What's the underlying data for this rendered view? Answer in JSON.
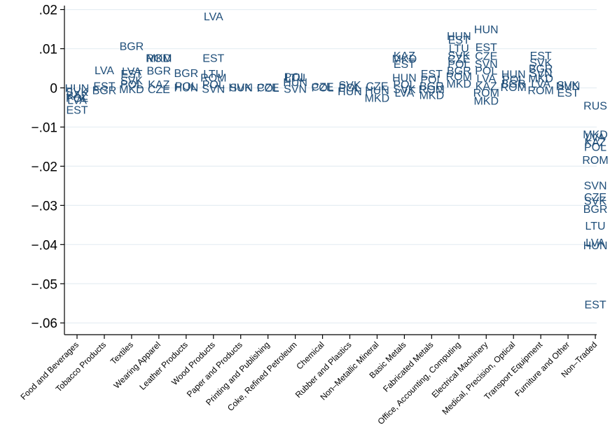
{
  "chart_data": {
    "type": "scatter",
    "marker": "country-code text labels",
    "color": "#1f4e79",
    "grid": true,
    "ylim": [
      -0.063,
      0.021
    ],
    "yticks": [
      ".02",
      ".01",
      "0",
      "−.01",
      "−.02",
      "−.03",
      "−.04",
      "−.05",
      "−.06"
    ],
    "ytick_values": [
      0.02,
      0.01,
      0,
      -0.01,
      -0.02,
      -0.03,
      -0.04,
      -0.05,
      -0.06
    ],
    "categories": [
      "Food and Beverages",
      "Tobacco Products",
      "Textiles",
      "Wearing Apparel",
      "Leather Products",
      "Wood Products",
      "Paper and Products",
      "Printing and Publishing",
      "Coke, Refined Petroleum",
      "Chemical",
      "Rubber and Plastics",
      "Non–Metallic Mineral",
      "Basic Metals",
      "Fabricated Metals",
      "Office, Accounting, Computing",
      "Electrical Machinery",
      "Medical, Precision, Optical",
      "Transport Equipment",
      "Furniture and Other",
      "Non–Traded"
    ],
    "points": [
      {
        "x": 0,
        "y": 0,
        "label": "HUN"
      },
      {
        "x": 0,
        "y": -0.001,
        "label": "SVK"
      },
      {
        "x": 0,
        "y": -0.002,
        "label": "KAZ"
      },
      {
        "x": 0,
        "y": -0.0025,
        "label": "POL"
      },
      {
        "x": 0,
        "y": -0.003,
        "label": "LVA"
      },
      {
        "x": 0,
        "y": -0.0055,
        "label": "EST"
      },
      {
        "x": 1,
        "y": 0.0046,
        "label": "LVA"
      },
      {
        "x": 1,
        "y": 0.0005,
        "label": "EST"
      },
      {
        "x": 1,
        "y": -0.0005,
        "label": "BGR"
      },
      {
        "x": 2,
        "y": 0.0107,
        "label": "BGR"
      },
      {
        "x": 2,
        "y": 0.0043,
        "label": "LVA"
      },
      {
        "x": 2,
        "y": 0.0037,
        "label": "EST"
      },
      {
        "x": 2,
        "y": 0.002,
        "label": "SVK"
      },
      {
        "x": 2,
        "y": 0.001,
        "label": "POL"
      },
      {
        "x": 2,
        "y": -0.0003,
        "label": "MKD"
      },
      {
        "x": 3,
        "y": 0.0077,
        "label": "ROM"
      },
      {
        "x": 3,
        "y": 0.0077,
        "label": "MKD"
      },
      {
        "x": 3,
        "y": 0.0045,
        "label": "BGR"
      },
      {
        "x": 3,
        "y": 0.001,
        "label": "KAZ"
      },
      {
        "x": 3,
        "y": -0.0003,
        "label": "CZE"
      },
      {
        "x": 4,
        "y": 0.0038,
        "label": "BGR"
      },
      {
        "x": 4,
        "y": 0.0005,
        "label": "POL"
      },
      {
        "x": 4,
        "y": 0.0002,
        "label": "HUN"
      },
      {
        "x": 5,
        "y": 0.0183,
        "label": "LVA"
      },
      {
        "x": 5,
        "y": 0.0077,
        "label": "EST"
      },
      {
        "x": 5,
        "y": 0.0037,
        "label": "LTU"
      },
      {
        "x": 5,
        "y": 0.0027,
        "label": "ROM"
      },
      {
        "x": 5,
        "y": 0.001,
        "label": "POL"
      },
      {
        "x": 5,
        "y": -0.0002,
        "label": "SVN"
      },
      {
        "x": 6,
        "y": 0.0002,
        "label": "SVK"
      },
      {
        "x": 6,
        "y": 0.0002,
        "label": "HUN"
      },
      {
        "x": 7,
        "y": 0.0001,
        "label": "POL"
      },
      {
        "x": 7,
        "y": 0.0002,
        "label": "CZE"
      },
      {
        "x": 8,
        "y": 0.0029,
        "label": "POL"
      },
      {
        "x": 8,
        "y": 0.0027,
        "label": "LTU"
      },
      {
        "x": 8,
        "y": 0.0015,
        "label": "HUN"
      },
      {
        "x": 8,
        "y": -0.0002,
        "label": "SVN"
      },
      {
        "x": 9,
        "y": 0.0004,
        "label": "CZE"
      },
      {
        "x": 9,
        "y": 0.0002,
        "label": "POL"
      },
      {
        "x": 10,
        "y": 0.0008,
        "label": "SVK"
      },
      {
        "x": 10,
        "y": 0.0002,
        "label": "POL"
      },
      {
        "x": 10,
        "y": -0.0008,
        "label": "HUN"
      },
      {
        "x": 11,
        "y": 0.0005,
        "label": "CZE"
      },
      {
        "x": 11,
        "y": -0.0005,
        "label": "HUN"
      },
      {
        "x": 11,
        "y": -0.0025,
        "label": "MKD"
      },
      {
        "x": 12,
        "y": 0.0083,
        "label": "KAZ"
      },
      {
        "x": 12,
        "y": 0.0075,
        "label": "MKD"
      },
      {
        "x": 12,
        "y": 0.0062,
        "label": "EST"
      },
      {
        "x": 12,
        "y": 0.0027,
        "label": "HUN"
      },
      {
        "x": 12,
        "y": 0.001,
        "label": "POL"
      },
      {
        "x": 12,
        "y": -0.0003,
        "label": "SVK"
      },
      {
        "x": 12,
        "y": -0.0012,
        "label": "LVA"
      },
      {
        "x": 13,
        "y": 0.0037,
        "label": "EST"
      },
      {
        "x": 13,
        "y": 0.0022,
        "label": "POL"
      },
      {
        "x": 13,
        "y": 0.0005,
        "label": "BGR"
      },
      {
        "x": 13,
        "y": -0.0003,
        "label": "ROM"
      },
      {
        "x": 13,
        "y": -0.0018,
        "label": "MKD"
      },
      {
        "x": 14,
        "y": 0.0133,
        "label": "HUN"
      },
      {
        "x": 14,
        "y": 0.0123,
        "label": "EST"
      },
      {
        "x": 14,
        "y": 0.0102,
        "label": "LTU"
      },
      {
        "x": 14,
        "y": 0.0083,
        "label": "SVK"
      },
      {
        "x": 14,
        "y": 0.0075,
        "label": "CZE"
      },
      {
        "x": 14,
        "y": 0.0062,
        "label": "POL"
      },
      {
        "x": 14,
        "y": 0.0045,
        "label": "BGR"
      },
      {
        "x": 14,
        "y": 0.003,
        "label": "ROM"
      },
      {
        "x": 14,
        "y": 0.0012,
        "label": "MKD"
      },
      {
        "x": 15,
        "y": 0.015,
        "label": "HUN"
      },
      {
        "x": 15,
        "y": 0.0105,
        "label": "EST"
      },
      {
        "x": 15,
        "y": 0.0082,
        "label": "CZE"
      },
      {
        "x": 15,
        "y": 0.0062,
        "label": "SVN"
      },
      {
        "x": 15,
        "y": 0.0045,
        "label": "POL"
      },
      {
        "x": 15,
        "y": 0.0025,
        "label": "LVA"
      },
      {
        "x": 15,
        "y": 0.0005,
        "label": "KAZ"
      },
      {
        "x": 15,
        "y": -0.0012,
        "label": "ROM"
      },
      {
        "x": 15,
        "y": -0.0032,
        "label": "MKD"
      },
      {
        "x": 16,
        "y": 0.0036,
        "label": "HUN"
      },
      {
        "x": 16,
        "y": 0.0022,
        "label": "POL"
      },
      {
        "x": 16,
        "y": 0.0012,
        "label": "BGR"
      },
      {
        "x": 16,
        "y": 0.0003,
        "label": "ROM"
      },
      {
        "x": 17,
        "y": 0.0083,
        "label": "EST"
      },
      {
        "x": 17,
        "y": 0.0065,
        "label": "SVK"
      },
      {
        "x": 17,
        "y": 0.005,
        "label": "BGR"
      },
      {
        "x": 17,
        "y": 0.0038,
        "label": "SVN"
      },
      {
        "x": 17,
        "y": 0.0025,
        "label": "MKD"
      },
      {
        "x": 17,
        "y": 0.0012,
        "label": "LVA"
      },
      {
        "x": 17,
        "y": -0.0005,
        "label": "ROM"
      },
      {
        "x": 18,
        "y": 0.0008,
        "label": "SVK"
      },
      {
        "x": 18,
        "y": 0.0005,
        "label": "HUN"
      },
      {
        "x": 18,
        "y": -0.0012,
        "label": "EST"
      },
      {
        "x": 19,
        "y": -0.0045,
        "label": "RUS"
      },
      {
        "x": 19,
        "y": -0.0118,
        "label": "MKD"
      },
      {
        "x": 19,
        "y": -0.0125,
        "label": "LVA"
      },
      {
        "x": 19,
        "y": -0.0138,
        "label": "KAZ"
      },
      {
        "x": 19,
        "y": -0.015,
        "label": "POL"
      },
      {
        "x": 19,
        "y": -0.0183,
        "label": "ROM"
      },
      {
        "x": 19,
        "y": -0.0248,
        "label": "SVN"
      },
      {
        "x": 19,
        "y": -0.0278,
        "label": "CZE"
      },
      {
        "x": 19,
        "y": -0.0288,
        "label": "SVK"
      },
      {
        "x": 19,
        "y": -0.0308,
        "label": "BGR"
      },
      {
        "x": 19,
        "y": -0.0351,
        "label": "LTU"
      },
      {
        "x": 19,
        "y": -0.0394,
        "label": "LVA"
      },
      {
        "x": 19,
        "y": -0.0401,
        "label": "HUN"
      },
      {
        "x": 19,
        "y": -0.0552,
        "label": "EST"
      }
    ]
  }
}
